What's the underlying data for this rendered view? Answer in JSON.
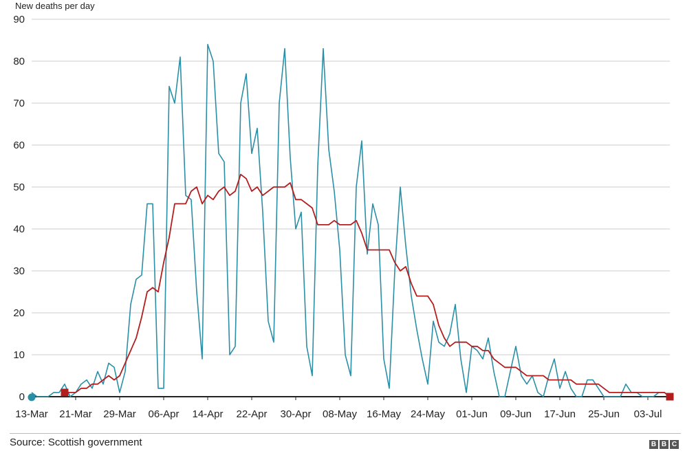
{
  "chart_data": {
    "type": "line",
    "ylabel": "New deaths per day",
    "ylim": [
      0,
      90
    ],
    "yticks": [
      0,
      10,
      20,
      30,
      40,
      50,
      60,
      70,
      80,
      90
    ],
    "xticks": [
      "13-Mar",
      "21-Mar",
      "29-Mar",
      "06-Apr",
      "14-Apr",
      "22-Apr",
      "30-Apr",
      "08-May",
      "16-May",
      "24-May",
      "01-Jun",
      "09-Jun",
      "17-Jun",
      "25-Jun",
      "03-Jul"
    ],
    "grid": true,
    "colors": {
      "daily": "#2a8fa6",
      "average": "#b21e1e",
      "axis": "#222222",
      "grid": "#cccccc"
    },
    "series": [
      {
        "values": [
          1,
          0,
          0,
          0,
          1,
          1,
          3,
          0,
          1,
          3,
          4,
          2,
          6,
          3,
          8,
          7,
          1,
          6,
          22,
          28,
          29,
          46,
          46,
          2,
          2,
          74,
          70,
          81,
          48,
          47,
          25,
          9,
          84,
          80,
          58,
          56,
          10,
          12,
          70,
          77,
          58,
          64,
          44,
          18,
          13,
          70,
          83,
          57,
          40,
          44,
          12,
          5,
          55,
          83,
          59,
          49,
          35,
          10,
          5,
          50,
          61,
          34,
          46,
          41,
          9,
          2,
          30,
          50,
          36,
          24,
          16,
          9,
          3,
          18,
          13,
          12,
          15,
          22,
          9,
          1,
          12,
          11,
          9,
          14,
          6,
          0,
          0,
          6,
          12,
          5,
          3,
          5,
          1,
          0,
          5,
          9,
          2,
          6,
          2,
          0,
          0,
          4,
          4,
          2,
          0,
          0,
          0,
          0,
          3,
          1,
          1,
          0,
          0,
          0,
          1,
          1,
          0
        ]
      },
      {
        "values": [
          null,
          null,
          null,
          null,
          null,
          null,
          1,
          1,
          1,
          2,
          2,
          3,
          3,
          4,
          5,
          4,
          5,
          8,
          11,
          14,
          19,
          25,
          26,
          25,
          32,
          38,
          46,
          46,
          46,
          49,
          50,
          46,
          48,
          47,
          49,
          50,
          48,
          49,
          53,
          52,
          49,
          50,
          48,
          49,
          50,
          50,
          50,
          51,
          47,
          47,
          46,
          45,
          41,
          41,
          41,
          42,
          41,
          41,
          41,
          42,
          39,
          35,
          35,
          35,
          35,
          35,
          32,
          30,
          31,
          27,
          24,
          24,
          24,
          22,
          17,
          14,
          12,
          13,
          13,
          13,
          12,
          12,
          11,
          11,
          9,
          8,
          7,
          7,
          7,
          6,
          5,
          5,
          5,
          5,
          4,
          4,
          4,
          4,
          4,
          3,
          3,
          3,
          3,
          3,
          2,
          1,
          1,
          1,
          1,
          1,
          1,
          1,
          1,
          1,
          1,
          1,
          0
        ]
      }
    ]
  },
  "source": "Source: Scottish government",
  "brand": [
    "B",
    "B",
    "C"
  ]
}
